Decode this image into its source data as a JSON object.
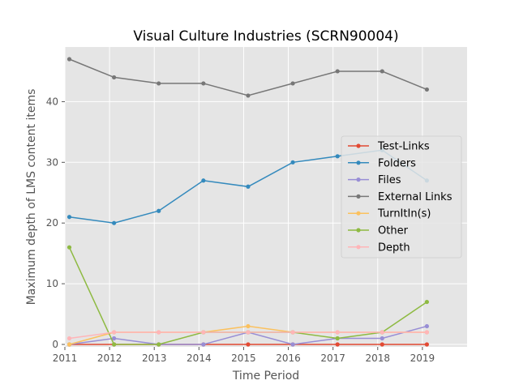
{
  "chart_data": {
    "type": "line",
    "title": "Visual Culture Industries (SCRN90004)",
    "xlabel": "Time Period",
    "ylabel": "Maximum depth of LMS content items",
    "xlim": [
      2011,
      2020
    ],
    "ylim": [
      -0.4,
      49
    ],
    "grid": true,
    "legend_position": "right",
    "x_ticks": [
      "2011",
      "2012",
      "2013",
      "2014",
      "2015",
      "2016",
      "2017",
      "2018",
      "2019"
    ],
    "y_ticks": [
      "0",
      "10",
      "20",
      "30",
      "40"
    ],
    "x": [
      2011.1,
      2012.1,
      2013.1,
      2014.1,
      2015.1,
      2016.1,
      2017.1,
      2018.1,
      2019.1
    ],
    "series": [
      {
        "name": "Test-Links",
        "color": "#e24a33",
        "values": [
          0,
          0,
          0,
          0,
          0,
          0,
          0,
          0,
          0
        ]
      },
      {
        "name": "Folders",
        "color": "#348abd",
        "values": [
          21,
          20,
          22,
          27,
          26,
          30,
          31,
          32,
          27
        ]
      },
      {
        "name": "Files",
        "color": "#988ed5",
        "values": [
          0,
          1,
          0,
          0,
          2,
          0,
          1,
          1,
          3
        ]
      },
      {
        "name": "External Links",
        "color": "#777777",
        "values": [
          47,
          44,
          43,
          43,
          41,
          43,
          45,
          45,
          42
        ]
      },
      {
        "name": "TurnItIn(s)",
        "color": "#fbc15e",
        "values": [
          0,
          2,
          2,
          2,
          3,
          2,
          2,
          2,
          2
        ]
      },
      {
        "name": "Other",
        "color": "#8eba42",
        "values": [
          16,
          0,
          0,
          2,
          2,
          2,
          1,
          2,
          7
        ]
      },
      {
        "name": "Depth",
        "color": "#ffb5b8",
        "values": [
          1,
          2,
          2,
          2,
          2,
          2,
          2,
          2,
          2
        ]
      }
    ]
  }
}
